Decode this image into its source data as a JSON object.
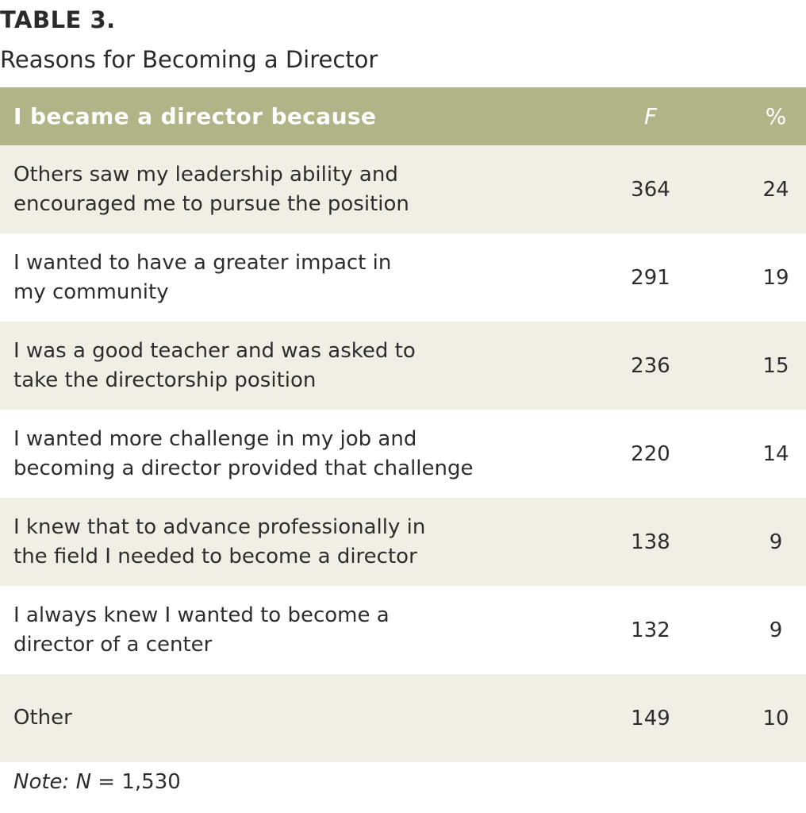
{
  "table": {
    "label": "TABLE 3.",
    "title": "Reasons for Becoming a Director",
    "header": {
      "col_reason": "I became a director because",
      "col_f": "F",
      "col_pct": "%"
    },
    "rows": [
      {
        "reason_line1": "Others saw my leadership ability and",
        "reason_line2": "encouraged me to pursue the position",
        "f": "364",
        "pct": "24"
      },
      {
        "reason_line1": "I wanted to have a greater impact in",
        "reason_line2": "my community",
        "f": "291",
        "pct": "19"
      },
      {
        "reason_line1": "I was a good teacher and was asked to",
        "reason_line2": "take the directorship position",
        "f": "236",
        "pct": "15"
      },
      {
        "reason_line1": "I wanted more challenge in my job and",
        "reason_line2": "becoming a director provided that challenge",
        "f": "220",
        "pct": "14"
      },
      {
        "reason_line1": "I knew that to advance professionally in",
        "reason_line2": "the field I needed to become a director",
        "f": "138",
        "pct": "9"
      },
      {
        "reason_line1": "I always knew I wanted to become a",
        "reason_line2": "director of a center",
        "f": "132",
        "pct": "9"
      },
      {
        "reason_line1": "Other",
        "reason_line2": "",
        "f": "149",
        "pct": "10"
      }
    ],
    "note": {
      "label": "Note:",
      "n_symbol": "N",
      "n_value": " = 1,530"
    }
  },
  "colors": {
    "header_bg": "#b0b587",
    "shaded_row_bg": "#f0efe6",
    "header_text": "#ffffff"
  }
}
